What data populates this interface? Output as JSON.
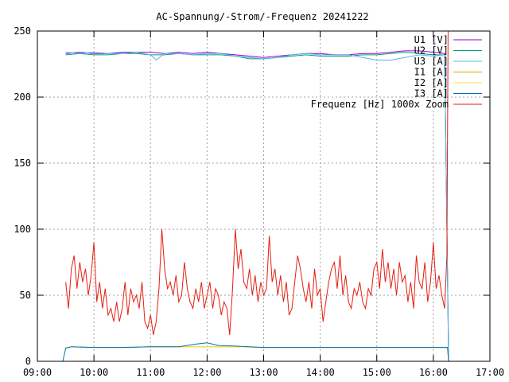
{
  "chart_data": {
    "type": "line",
    "title": "AC-Spannung/-Strom/-Frequenz 20241222",
    "xlabel": "",
    "ylabel": "",
    "xlim": [
      "09:00",
      "17:00"
    ],
    "ylim": [
      0,
      250
    ],
    "x_ticks": [
      "09:00",
      "10:00",
      "11:00",
      "12:00",
      "13:00",
      "14:00",
      "15:00",
      "16:00",
      "17:00"
    ],
    "y_ticks": [
      0,
      50,
      100,
      150,
      200,
      250
    ],
    "grid": true,
    "legend_position": "top-right",
    "x_unit_note": "x values are clock times (hours as decimal, e.g. 9.5 = 09:30)",
    "series": [
      {
        "name": "U1 [V]",
        "color": "#9400d3",
        "points": [
          [
            9.5,
            233
          ],
          [
            9.75,
            234
          ],
          [
            10,
            233
          ],
          [
            10.25,
            233
          ],
          [
            10.5,
            234
          ],
          [
            10.75,
            234
          ],
          [
            11,
            234
          ],
          [
            11.25,
            233
          ],
          [
            11.5,
            234
          ],
          [
            11.75,
            233
          ],
          [
            12,
            234
          ],
          [
            12.25,
            233
          ],
          [
            12.5,
            232
          ],
          [
            12.75,
            231
          ],
          [
            13,
            230
          ],
          [
            13.25,
            231
          ],
          [
            13.5,
            232
          ],
          [
            13.75,
            233
          ],
          [
            14,
            233
          ],
          [
            14.25,
            232
          ],
          [
            14.5,
            232
          ],
          [
            14.75,
            233
          ],
          [
            15,
            233
          ],
          [
            15.25,
            234
          ],
          [
            15.5,
            235
          ],
          [
            15.75,
            235
          ],
          [
            16,
            234
          ],
          [
            16.2,
            233
          ],
          [
            16.27,
            0
          ]
        ]
      },
      {
        "name": "U2 [V]",
        "color": "#009e73",
        "points": [
          [
            9.5,
            232
          ],
          [
            9.75,
            233
          ],
          [
            10,
            232
          ],
          [
            10.25,
            232
          ],
          [
            10.5,
            233
          ],
          [
            10.75,
            233
          ],
          [
            11,
            232
          ],
          [
            11.25,
            232
          ],
          [
            11.5,
            233
          ],
          [
            11.75,
            232
          ],
          [
            12,
            232
          ],
          [
            12.25,
            232
          ],
          [
            12.5,
            231
          ],
          [
            12.75,
            229
          ],
          [
            13,
            229
          ],
          [
            13.25,
            230
          ],
          [
            13.5,
            231
          ],
          [
            13.75,
            232
          ],
          [
            14,
            231
          ],
          [
            14.25,
            231
          ],
          [
            14.5,
            231
          ],
          [
            14.75,
            232
          ],
          [
            15,
            232
          ],
          [
            15.25,
            233
          ],
          [
            15.5,
            234
          ],
          [
            15.75,
            233
          ],
          [
            16,
            232
          ],
          [
            16.2,
            232
          ],
          [
            16.27,
            0
          ]
        ]
      },
      {
        "name": "U3 [A]",
        "color": "#56b4e9",
        "points": [
          [
            9.5,
            234
          ],
          [
            9.75,
            233
          ],
          [
            10,
            234
          ],
          [
            10.25,
            233
          ],
          [
            10.5,
            233
          ],
          [
            10.75,
            234
          ],
          [
            11,
            232
          ],
          [
            11.1,
            228
          ],
          [
            11.25,
            233
          ],
          [
            11.5,
            233
          ],
          [
            11.75,
            232
          ],
          [
            12,
            233
          ],
          [
            12.25,
            233
          ],
          [
            12.5,
            231
          ],
          [
            12.75,
            230
          ],
          [
            13,
            229
          ],
          [
            13.25,
            230
          ],
          [
            13.5,
            232
          ],
          [
            13.75,
            233
          ],
          [
            14,
            232
          ],
          [
            14.25,
            232
          ],
          [
            14.5,
            232
          ],
          [
            14.75,
            230
          ],
          [
            15,
            228
          ],
          [
            15.25,
            228
          ],
          [
            15.5,
            230
          ],
          [
            15.75,
            232
          ],
          [
            16,
            231
          ],
          [
            16.2,
            232
          ],
          [
            16.27,
            0
          ]
        ]
      },
      {
        "name": "I1 [A]",
        "color": "#e69f00",
        "points": [
          [
            9.5,
            10
          ],
          [
            9.6,
            11
          ],
          [
            10,
            10.5
          ],
          [
            10.5,
            10.5
          ],
          [
            11,
            11
          ],
          [
            11.5,
            11
          ],
          [
            12,
            11
          ],
          [
            12.5,
            11
          ],
          [
            13,
            10.5
          ],
          [
            13.5,
            10.5
          ],
          [
            14,
            10.5
          ],
          [
            14.5,
            10.5
          ],
          [
            15,
            10.5
          ],
          [
            15.5,
            10.5
          ],
          [
            16,
            10.5
          ],
          [
            16.25,
            10.5
          ],
          [
            16.27,
            0
          ]
        ]
      },
      {
        "name": "I2 [A]",
        "color": "#f0e442",
        "points": [
          [
            9.5,
            10
          ],
          [
            9.6,
            11
          ],
          [
            10,
            10.5
          ],
          [
            10.5,
            10.5
          ],
          [
            11,
            11
          ],
          [
            11.5,
            11
          ],
          [
            12,
            11
          ],
          [
            12.5,
            11
          ],
          [
            13,
            10.5
          ],
          [
            13.5,
            10.5
          ],
          [
            14,
            10.5
          ],
          [
            14.5,
            10.5
          ],
          [
            15,
            10.5
          ],
          [
            15.5,
            10.5
          ],
          [
            16,
            10.5
          ],
          [
            16.25,
            10.5
          ],
          [
            16.27,
            0
          ]
        ]
      },
      {
        "name": "I3 [A]",
        "color": "#0072b2",
        "points": [
          [
            9.45,
            0
          ],
          [
            9.5,
            10
          ],
          [
            9.6,
            11
          ],
          [
            10,
            10.5
          ],
          [
            10.5,
            10.5
          ],
          [
            11,
            11
          ],
          [
            11.5,
            11
          ],
          [
            11.8,
            13
          ],
          [
            12,
            14
          ],
          [
            12.2,
            12
          ],
          [
            12.5,
            11.5
          ],
          [
            13,
            10.5
          ],
          [
            13.5,
            10.5
          ],
          [
            14,
            10.5
          ],
          [
            14.5,
            10.5
          ],
          [
            15,
            10.5
          ],
          [
            15.5,
            10.5
          ],
          [
            16,
            10.5
          ],
          [
            16.25,
            10.5
          ],
          [
            16.27,
            0
          ]
        ]
      },
      {
        "name": "Frequenz [Hz] 1000x Zoom",
        "color": "#e51e10",
        "points": [
          [
            9.5,
            60
          ],
          [
            9.55,
            40
          ],
          [
            9.6,
            70
          ],
          [
            9.65,
            80
          ],
          [
            9.7,
            55
          ],
          [
            9.75,
            75
          ],
          [
            9.8,
            60
          ],
          [
            9.85,
            70
          ],
          [
            9.9,
            50
          ],
          [
            9.95,
            65
          ],
          [
            10,
            90
          ],
          [
            10.05,
            45
          ],
          [
            10.1,
            60
          ],
          [
            10.15,
            40
          ],
          [
            10.2,
            55
          ],
          [
            10.25,
            35
          ],
          [
            10.3,
            40
          ],
          [
            10.35,
            30
          ],
          [
            10.4,
            45
          ],
          [
            10.45,
            30
          ],
          [
            10.5,
            40
          ],
          [
            10.55,
            60
          ],
          [
            10.6,
            35
          ],
          [
            10.65,
            55
          ],
          [
            10.7,
            45
          ],
          [
            10.75,
            50
          ],
          [
            10.8,
            40
          ],
          [
            10.85,
            60
          ],
          [
            10.9,
            30
          ],
          [
            10.95,
            25
          ],
          [
            11,
            35
          ],
          [
            11.05,
            20
          ],
          [
            11.1,
            30
          ],
          [
            11.15,
            55
          ],
          [
            11.2,
            100
          ],
          [
            11.25,
            70
          ],
          [
            11.3,
            55
          ],
          [
            11.35,
            60
          ],
          [
            11.4,
            50
          ],
          [
            11.45,
            65
          ],
          [
            11.5,
            45
          ],
          [
            11.55,
            50
          ],
          [
            11.6,
            75
          ],
          [
            11.65,
            55
          ],
          [
            11.7,
            45
          ],
          [
            11.75,
            40
          ],
          [
            11.8,
            55
          ],
          [
            11.85,
            45
          ],
          [
            11.9,
            60
          ],
          [
            11.95,
            40
          ],
          [
            12,
            50
          ],
          [
            12.05,
            60
          ],
          [
            12.1,
            40
          ],
          [
            12.15,
            55
          ],
          [
            12.2,
            50
          ],
          [
            12.25,
            35
          ],
          [
            12.3,
            45
          ],
          [
            12.35,
            40
          ],
          [
            12.4,
            20
          ],
          [
            12.45,
            55
          ],
          [
            12.5,
            100
          ],
          [
            12.55,
            70
          ],
          [
            12.6,
            85
          ],
          [
            12.65,
            60
          ],
          [
            12.7,
            55
          ],
          [
            12.75,
            70
          ],
          [
            12.8,
            50
          ],
          [
            12.85,
            65
          ],
          [
            12.9,
            45
          ],
          [
            12.95,
            60
          ],
          [
            13,
            50
          ],
          [
            13.05,
            55
          ],
          [
            13.1,
            95
          ],
          [
            13.15,
            60
          ],
          [
            13.2,
            70
          ],
          [
            13.25,
            50
          ],
          [
            13.3,
            65
          ],
          [
            13.35,
            45
          ],
          [
            13.4,
            60
          ],
          [
            13.45,
            35
          ],
          [
            13.5,
            40
          ],
          [
            13.55,
            60
          ],
          [
            13.6,
            80
          ],
          [
            13.65,
            70
          ],
          [
            13.7,
            55
          ],
          [
            13.75,
            45
          ],
          [
            13.8,
            60
          ],
          [
            13.85,
            40
          ],
          [
            13.9,
            70
          ],
          [
            13.95,
            50
          ],
          [
            14,
            55
          ],
          [
            14.05,
            30
          ],
          [
            14.1,
            45
          ],
          [
            14.15,
            60
          ],
          [
            14.2,
            70
          ],
          [
            14.25,
            75
          ],
          [
            14.3,
            55
          ],
          [
            14.35,
            80
          ],
          [
            14.4,
            50
          ],
          [
            14.45,
            65
          ],
          [
            14.5,
            45
          ],
          [
            14.55,
            40
          ],
          [
            14.6,
            55
          ],
          [
            14.65,
            50
          ],
          [
            14.7,
            60
          ],
          [
            14.75,
            45
          ],
          [
            14.8,
            40
          ],
          [
            14.85,
            55
          ],
          [
            14.9,
            50
          ],
          [
            14.95,
            70
          ],
          [
            15,
            75
          ],
          [
            15.05,
            55
          ],
          [
            15.1,
            85
          ],
          [
            15.15,
            60
          ],
          [
            15.2,
            75
          ],
          [
            15.25,
            55
          ],
          [
            15.3,
            70
          ],
          [
            15.35,
            50
          ],
          [
            15.4,
            75
          ],
          [
            15.45,
            60
          ],
          [
            15.5,
            65
          ],
          [
            15.55,
            45
          ],
          [
            15.6,
            60
          ],
          [
            15.65,
            40
          ],
          [
            15.7,
            80
          ],
          [
            15.75,
            60
          ],
          [
            15.8,
            55
          ],
          [
            15.85,
            75
          ],
          [
            15.9,
            45
          ],
          [
            15.95,
            60
          ],
          [
            16,
            90
          ],
          [
            16.05,
            55
          ],
          [
            16.1,
            65
          ],
          [
            16.15,
            50
          ],
          [
            16.2,
            40
          ],
          [
            16.22,
            60
          ],
          [
            16.24,
            80
          ],
          [
            16.26,
            250
          ]
        ]
      }
    ]
  }
}
